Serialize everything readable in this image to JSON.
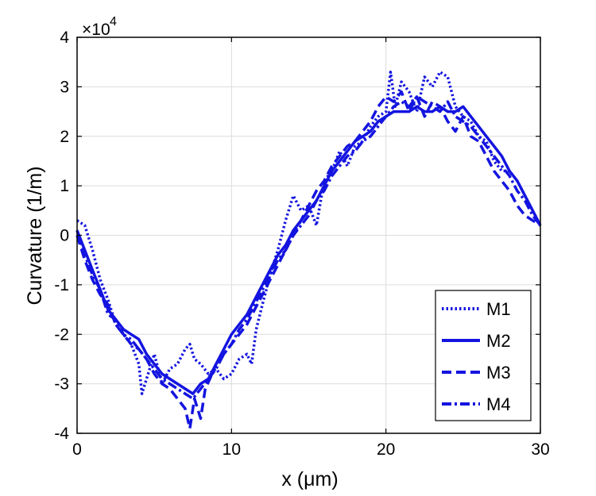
{
  "chart_data": {
    "type": "line",
    "xlabel": "x (μm)",
    "ylabel": "Curvature (1/m)",
    "scale_label": "×10",
    "scale_exponent": "4",
    "xlim": [
      0,
      30
    ],
    "ylim": [
      -4,
      4
    ],
    "xticks": [
      0,
      10,
      20,
      30
    ],
    "xtick_labels": [
      "0",
      "10",
      "20",
      "30"
    ],
    "yticks": [
      -4,
      -3,
      -2,
      -1,
      0,
      1,
      2,
      3,
      4
    ],
    "ytick_labels": [
      "-4",
      "-3",
      "-2",
      "-1",
      "0",
      "1",
      "2",
      "3",
      "4"
    ],
    "grid": true,
    "legend_position": "bottom-right",
    "line_color": "#1414e0",
    "series": [
      {
        "name": "M1",
        "style": "dotted",
        "x": [
          0,
          0.5,
          1,
          1.5,
          2,
          2.5,
          3,
          3.5,
          4,
          4.2,
          4.6,
          5,
          5.5,
          6,
          6.5,
          7,
          7.3,
          7.6,
          8,
          8.5,
          9,
          9.5,
          10,
          10.5,
          11,
          11.3,
          11.6,
          12,
          12.5,
          13,
          13.5,
          14,
          14.5,
          15,
          15.5,
          16,
          16.5,
          17,
          17.5,
          18,
          18.5,
          19,
          19.5,
          20,
          20.3,
          20.6,
          21,
          21.5,
          22,
          22.5,
          23,
          23.5,
          24,
          24.5,
          25,
          25.5,
          26,
          26.5,
          27,
          27.5,
          28,
          28.5,
          29,
          29.5,
          30
        ],
        "values": [
          0.3,
          0.2,
          -0.3,
          -0.9,
          -1.3,
          -1.8,
          -2.0,
          -2.2,
          -2.6,
          -3.2,
          -2.8,
          -2.4,
          -3.0,
          -2.7,
          -2.6,
          -2.3,
          -2.2,
          -2.5,
          -2.6,
          -2.8,
          -2.7,
          -2.9,
          -2.8,
          -2.5,
          -2.4,
          -2.6,
          -1.9,
          -1.4,
          -0.8,
          -0.3,
          0.3,
          0.8,
          0.5,
          0.6,
          0.2,
          1.1,
          1.3,
          1.7,
          1.4,
          1.8,
          1.9,
          2.2,
          2.4,
          2.5,
          3.3,
          2.6,
          3.1,
          2.9,
          2.5,
          3.2,
          3.0,
          3.3,
          3.2,
          2.6,
          2.4,
          2.3,
          2.0,
          1.9,
          1.5,
          1.3,
          1.3,
          1.1,
          0.8,
          0.5,
          0.2
        ]
      },
      {
        "name": "M2",
        "style": "solid",
        "x": [
          0,
          0.5,
          1,
          1.5,
          2,
          2.5,
          3,
          3.5,
          4,
          4.5,
          5,
          5.5,
          6,
          6.5,
          7,
          7.5,
          8,
          8.5,
          9,
          9.5,
          10,
          10.5,
          11,
          11.5,
          12,
          12.5,
          13,
          13.5,
          14,
          14.5,
          15,
          15.5,
          16,
          16.5,
          17,
          17.5,
          18,
          18.5,
          19,
          19.5,
          20,
          20.5,
          21,
          21.5,
          22,
          22.5,
          23,
          23.5,
          24,
          24.5,
          25,
          25.5,
          26,
          26.5,
          27,
          27.5,
          28,
          28.5,
          29,
          29.5,
          30
        ],
        "values": [
          0.1,
          -0.3,
          -0.7,
          -1.1,
          -1.5,
          -1.7,
          -1.9,
          -2.0,
          -2.1,
          -2.4,
          -2.6,
          -2.8,
          -2.9,
          -3.0,
          -3.1,
          -3.2,
          -3.0,
          -2.9,
          -2.6,
          -2.3,
          -2.0,
          -1.8,
          -1.6,
          -1.3,
          -1.0,
          -0.7,
          -0.4,
          -0.2,
          0.1,
          0.3,
          0.5,
          0.7,
          1.0,
          1.3,
          1.5,
          1.7,
          1.9,
          2.0,
          2.1,
          2.3,
          2.4,
          2.5,
          2.5,
          2.5,
          2.6,
          2.5,
          2.5,
          2.6,
          2.5,
          2.5,
          2.6,
          2.4,
          2.2,
          2.0,
          1.8,
          1.6,
          1.3,
          1.1,
          0.8,
          0.5,
          0.2
        ]
      },
      {
        "name": "M3",
        "style": "dashed",
        "x": [
          0,
          0.5,
          1,
          1.5,
          2,
          2.5,
          3,
          3.5,
          4,
          4.5,
          5,
          5.5,
          6,
          6.5,
          7,
          7.3,
          7.6,
          8,
          8.3,
          8.6,
          9,
          9.5,
          10,
          10.5,
          11,
          11.5,
          12,
          12.5,
          13,
          13.5,
          14,
          14.5,
          15,
          15.5,
          16,
          16.5,
          17,
          17.5,
          18,
          18.5,
          19,
          19.5,
          20,
          20.5,
          21,
          21.5,
          22,
          22.5,
          23,
          23.5,
          24,
          24.5,
          25,
          25.5,
          26,
          26.5,
          27,
          27.5,
          28,
          28.5,
          29,
          29.5,
          30
        ],
        "values": [
          0.0,
          -0.5,
          -0.9,
          -1.2,
          -1.4,
          -1.8,
          -2.0,
          -2.2,
          -2.3,
          -2.5,
          -2.8,
          -3.0,
          -3.1,
          -3.3,
          -3.5,
          -3.9,
          -3.3,
          -3.7,
          -3.1,
          -2.9,
          -2.6,
          -2.4,
          -2.2,
          -2.0,
          -1.8,
          -1.5,
          -1.2,
          -0.9,
          -0.6,
          -0.3,
          0.0,
          0.3,
          0.6,
          0.9,
          1.1,
          1.4,
          1.6,
          1.8,
          1.9,
          2.1,
          2.3,
          2.6,
          2.8,
          2.7,
          2.9,
          2.5,
          2.8,
          2.4,
          2.7,
          2.6,
          2.3,
          2.1,
          2.4,
          2.0,
          1.9,
          1.6,
          1.3,
          1.1,
          0.9,
          0.6,
          0.4,
          0.3,
          0.2
        ]
      },
      {
        "name": "M4",
        "style": "dashdot",
        "x": [
          0,
          0.5,
          1,
          1.5,
          2,
          2.5,
          3,
          3.5,
          4,
          4.5,
          5,
          5.5,
          6,
          6.5,
          7,
          7.5,
          8,
          8.5,
          9,
          9.5,
          10,
          10.5,
          11,
          11.5,
          12,
          12.5,
          13,
          13.5,
          14,
          14.5,
          15,
          15.5,
          16,
          16.5,
          17,
          17.5,
          18,
          18.5,
          19,
          19.5,
          20,
          20.5,
          21,
          21.5,
          22,
          22.5,
          23,
          23.5,
          24,
          24.5,
          25,
          25.5,
          26,
          26.5,
          27,
          27.5,
          28,
          28.5,
          29,
          29.5,
          30
        ],
        "values": [
          0.1,
          -0.4,
          -0.8,
          -1.1,
          -1.6,
          -1.7,
          -2.0,
          -2.1,
          -2.3,
          -2.5,
          -2.7,
          -2.9,
          -3.0,
          -3.1,
          -3.2,
          -3.3,
          -3.1,
          -2.9,
          -2.7,
          -2.4,
          -2.2,
          -1.9,
          -1.7,
          -1.4,
          -1.1,
          -0.8,
          -0.5,
          -0.3,
          0.0,
          0.2,
          0.4,
          0.7,
          0.9,
          1.2,
          1.4,
          1.6,
          1.7,
          1.9,
          2.0,
          2.2,
          2.4,
          2.6,
          2.7,
          2.6,
          2.8,
          2.7,
          2.6,
          2.5,
          2.7,
          2.4,
          2.3,
          2.2,
          2.0,
          1.8,
          1.6,
          1.4,
          1.2,
          0.9,
          0.7,
          0.4,
          0.2
        ]
      }
    ]
  }
}
